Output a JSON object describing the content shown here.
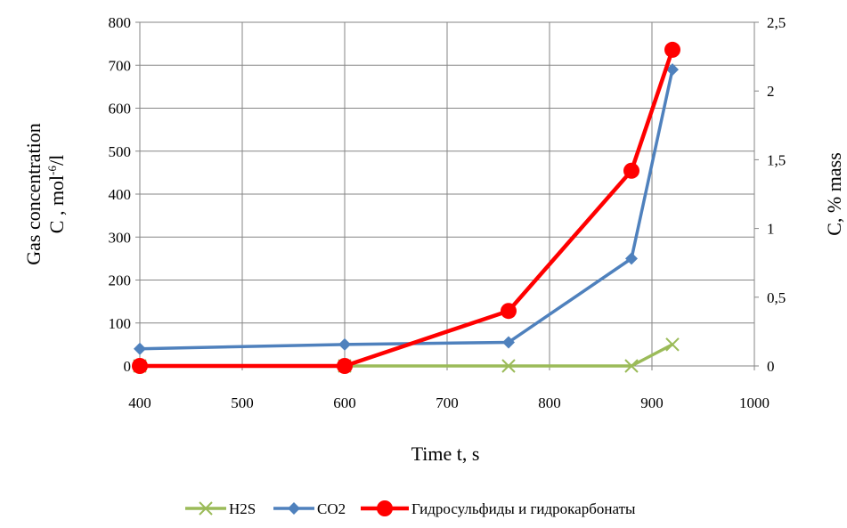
{
  "chart_data": {
    "type": "line",
    "x_axis": {
      "title": "Time t, s",
      "range": [
        400,
        1000
      ],
      "ticks": [
        400,
        500,
        600,
        700,
        800,
        900,
        1000
      ],
      "tick_labels": [
        "400",
        "500",
        "600",
        "700",
        "800",
        "900",
        "1000"
      ]
    },
    "y_left": {
      "title_line1": "Gas concentration",
      "title_line2_main": "C , mol",
      "title_line2_sup": "-6",
      "title_line2_end": "/l",
      "range": [
        0,
        800
      ],
      "ticks": [
        0,
        100,
        200,
        300,
        400,
        500,
        600,
        700,
        800
      ],
      "tick_labels": [
        "0",
        "100",
        "200",
        "300",
        "400",
        "500",
        "600",
        "700",
        "800"
      ]
    },
    "y_right": {
      "title": "C, % mass",
      "range": [
        0,
        2.5
      ],
      "ticks": [
        0,
        0.5,
        1,
        1.5,
        2,
        2.5
      ],
      "tick_labels": [
        "0",
        "0,5",
        "1",
        "1,5",
        "2",
        "2,5"
      ]
    },
    "grid": true,
    "legend_position": "bottom",
    "series": [
      {
        "name": "H2S",
        "axis": "left",
        "color": "#9bbb59",
        "marker": "x",
        "x": [
          400,
          600,
          760,
          880,
          920
        ],
        "y": [
          0,
          0,
          0,
          0,
          50
        ]
      },
      {
        "name": "CO2",
        "axis": "left",
        "color": "#4f81bd",
        "marker": "diamond",
        "x": [
          400,
          600,
          760,
          880,
          920
        ],
        "y": [
          40,
          50,
          55,
          250,
          690
        ]
      },
      {
        "name": "Гидросульфиды и гидрокарбонаты",
        "axis": "right",
        "color": "#ff0000",
        "marker": "circle",
        "x": [
          400,
          600,
          760,
          880,
          920
        ],
        "y": [
          0,
          0,
          0.4,
          1.42,
          2.3
        ]
      }
    ]
  }
}
